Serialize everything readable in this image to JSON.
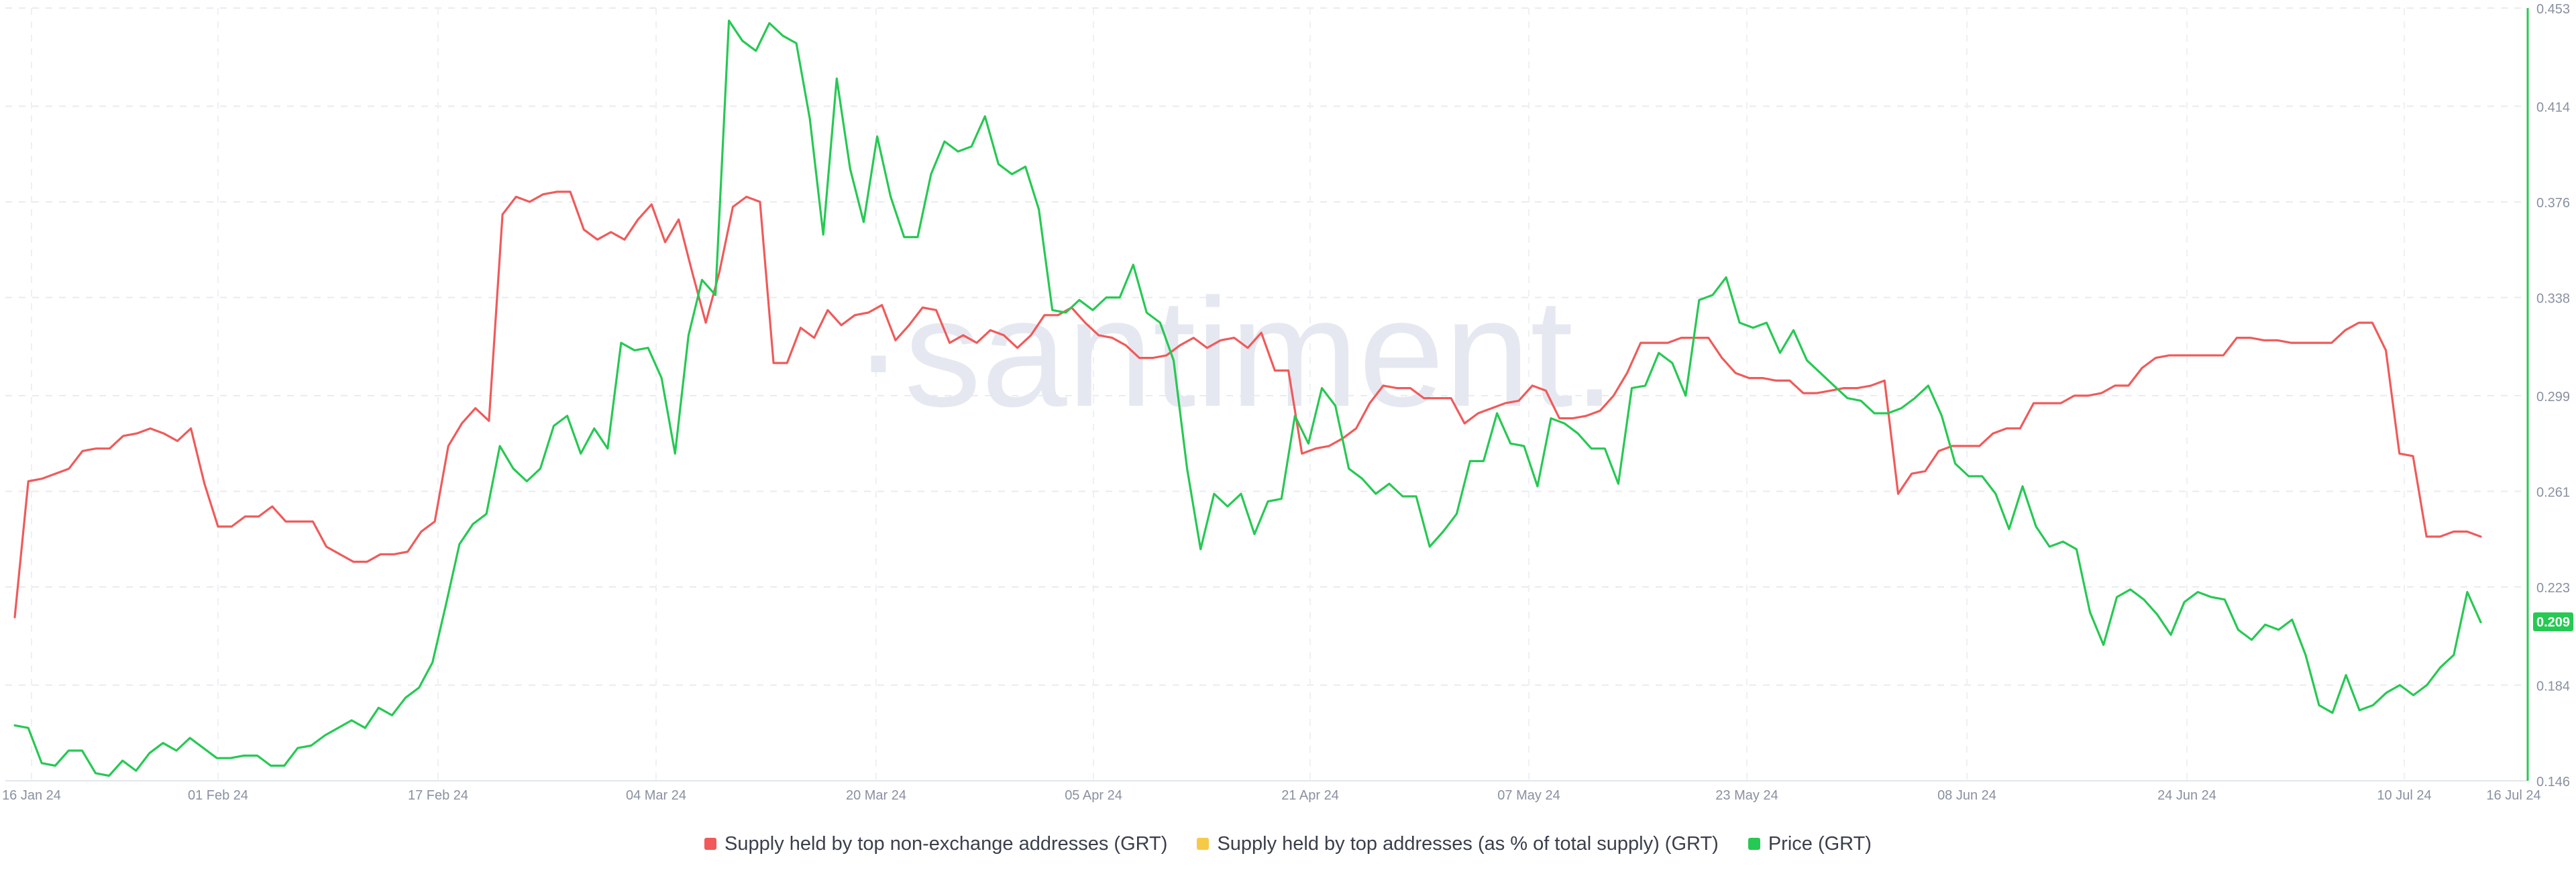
{
  "watermark": "·santiment.",
  "price_badge": "0.209",
  "legend": [
    {
      "label": "Supply held by top non-exchange addresses (GRT)",
      "color": "#f05a5a"
    },
    {
      "label": "Supply held by top addresses (as % of total supply) (GRT)",
      "color": "#f7c948"
    },
    {
      "label": "Price (GRT)",
      "color": "#26c953"
    }
  ],
  "chart_data": {
    "type": "line",
    "x_ticks": [
      "16 Jan 24",
      "01 Feb 24",
      "17 Feb 24",
      "04 Mar 24",
      "20 Mar 24",
      "05 Apr 24",
      "21 Apr 24",
      "07 May 24",
      "23 May 24",
      "08 Jun 24",
      "24 Jun 24",
      "10 Jul 24",
      "16 Jul 24"
    ],
    "y_right_ticks": [
      "0.146",
      "0.184",
      "0.223",
      "0.261",
      "0.299",
      "0.338",
      "0.376",
      "0.414",
      "0.453"
    ],
    "y_right_range": [
      0.146,
      0.453
    ],
    "grid": true,
    "legend_position": "bottom-center",
    "series": [
      {
        "name": "Supply held by top non-exchange addresses (GRT)",
        "color": "#f05a5a",
        "axis": "hidden",
        "values": [
          0.211,
          0.265,
          0.266,
          0.268,
          0.27,
          0.277,
          0.278,
          0.278,
          0.283,
          0.284,
          0.286,
          0.284,
          0.281,
          0.286,
          0.264,
          0.247,
          0.247,
          0.251,
          0.251,
          0.255,
          0.249,
          0.249,
          0.249,
          0.239,
          0.236,
          0.233,
          0.233,
          0.236,
          0.236,
          0.237,
          0.245,
          0.249,
          0.279,
          0.288,
          0.294,
          0.289,
          0.371,
          0.378,
          0.376,
          0.379,
          0.38,
          0.38,
          0.365,
          0.361,
          0.364,
          0.361,
          0.369,
          0.375,
          0.36,
          0.369,
          0.348,
          0.328,
          0.348,
          0.374,
          0.378,
          0.376,
          0.312,
          0.312,
          0.326,
          0.322,
          0.333,
          0.327,
          0.331,
          0.332,
          0.335,
          0.321,
          0.327,
          0.334,
          0.333,
          0.32,
          0.323,
          0.32,
          0.325,
          0.323,
          0.318,
          0.323,
          0.331,
          0.331,
          0.334,
          0.328,
          0.323,
          0.322,
          0.319,
          0.314,
          0.314,
          0.315,
          0.319,
          0.322,
          0.318,
          0.321,
          0.322,
          0.318,
          0.324,
          0.309,
          0.309,
          0.276,
          0.278,
          0.279,
          0.282,
          0.286,
          0.296,
          0.303,
          0.302,
          0.302,
          0.298,
          0.298,
          0.298,
          0.288,
          0.292,
          0.294,
          0.296,
          0.297,
          0.303,
          0.301,
          0.29,
          0.29,
          0.291,
          0.293,
          0.299,
          0.308,
          0.32,
          0.32,
          0.32,
          0.322,
          0.322,
          0.322,
          0.314,
          0.308,
          0.306,
          0.306,
          0.305,
          0.305,
          0.3,
          0.3,
          0.301,
          0.302,
          0.302,
          0.303,
          0.305,
          0.26,
          0.268,
          0.269,
          0.277,
          0.279,
          0.279,
          0.279,
          0.284,
          0.286,
          0.286,
          0.296,
          0.296,
          0.296,
          0.299,
          0.299,
          0.3,
          0.303,
          0.303,
          0.31,
          0.314,
          0.315,
          0.315,
          0.315,
          0.315,
          0.315,
          0.322,
          0.322,
          0.321,
          0.321,
          0.32,
          0.32,
          0.32,
          0.32,
          0.325,
          0.328,
          0.328,
          0.317,
          0.276,
          0.275,
          0.243,
          0.243,
          0.245,
          0.245,
          0.243
        ]
      },
      {
        "name": "Supply held by top addresses (as % of total supply) (GRT)",
        "color": "#f7c948",
        "values": []
      },
      {
        "name": "Price (GRT)",
        "color": "#26c953",
        "axis": "right",
        "values": [
          0.168,
          0.167,
          0.153,
          0.152,
          0.158,
          0.158,
          0.149,
          0.148,
          0.154,
          0.15,
          0.157,
          0.161,
          0.158,
          0.163,
          0.159,
          0.155,
          0.155,
          0.156,
          0.156,
          0.152,
          0.152,
          0.159,
          0.16,
          0.164,
          0.167,
          0.17,
          0.167,
          0.175,
          0.172,
          0.179,
          0.183,
          0.193,
          0.216,
          0.24,
          0.248,
          0.252,
          0.279,
          0.27,
          0.265,
          0.27,
          0.287,
          0.291,
          0.276,
          0.286,
          0.278,
          0.32,
          0.317,
          0.318,
          0.306,
          0.276,
          0.323,
          0.345,
          0.339,
          0.448,
          0.44,
          0.436,
          0.447,
          0.442,
          0.439,
          0.409,
          0.363,
          0.425,
          0.389,
          0.368,
          0.402,
          0.378,
          0.362,
          0.362,
          0.387,
          0.4,
          0.396,
          0.398,
          0.41,
          0.391,
          0.387,
          0.39,
          0.373,
          0.333,
          0.332,
          0.337,
          0.333,
          0.338,
          0.338,
          0.351,
          0.332,
          0.328,
          0.313,
          0.27,
          0.238,
          0.26,
          0.255,
          0.26,
          0.244,
          0.257,
          0.258,
          0.291,
          0.28,
          0.302,
          0.295,
          0.27,
          0.266,
          0.26,
          0.264,
          0.259,
          0.259,
          0.239,
          0.245,
          0.252,
          0.273,
          0.273,
          0.292,
          0.28,
          0.279,
          0.263,
          0.29,
          0.288,
          0.284,
          0.278,
          0.278,
          0.264,
          0.302,
          0.303,
          0.316,
          0.312,
          0.299,
          0.337,
          0.339,
          0.346,
          0.328,
          0.326,
          0.328,
          0.316,
          0.325,
          0.313,
          0.308,
          0.303,
          0.298,
          0.297,
          0.292,
          0.292,
          0.294,
          0.298,
          0.303,
          0.291,
          0.272,
          0.267,
          0.267,
          0.26,
          0.246,
          0.263,
          0.247,
          0.239,
          0.241,
          0.238,
          0.213,
          0.2,
          0.219,
          0.222,
          0.218,
          0.212,
          0.204,
          0.217,
          0.221,
          0.219,
          0.218,
          0.206,
          0.202,
          0.208,
          0.206,
          0.21,
          0.196,
          0.176,
          0.173,
          0.188,
          0.174,
          0.176,
          0.181,
          0.184,
          0.18,
          0.184,
          0.191,
          0.196,
          0.221,
          0.209
        ]
      }
    ]
  }
}
